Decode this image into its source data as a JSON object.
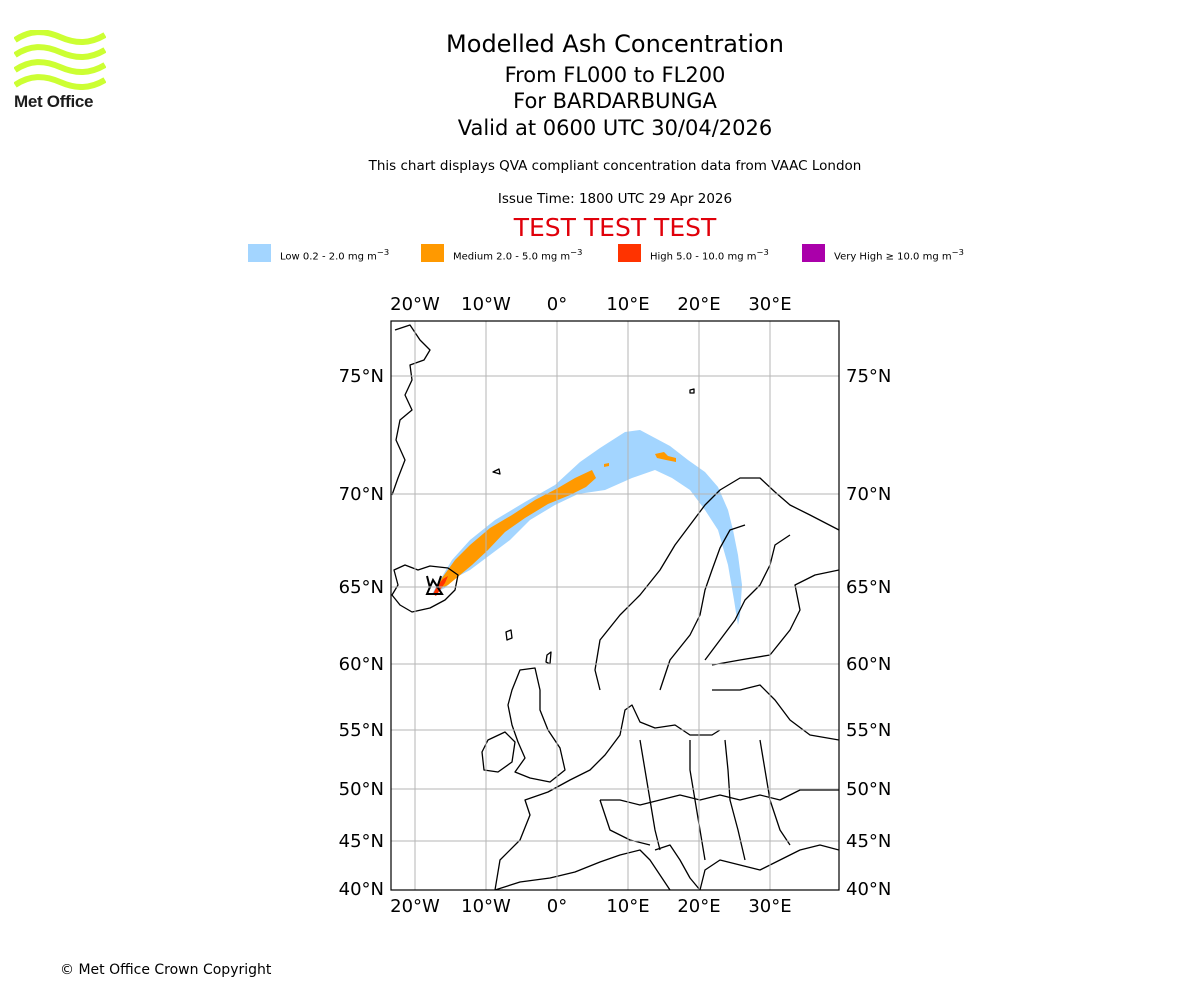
{
  "logo": {
    "text": "Met Office",
    "color": "#ccff33"
  },
  "titles": {
    "line1": "Modelled Ash Concentration",
    "line2": "From FL000 to FL200",
    "line3": "For BARDARBUNGA",
    "line4": "Valid at 0600 UTC 30/04/2026"
  },
  "subtitle": "This chart displays QVA compliant concentration data from VAAC London",
  "issue_time": "Issue Time: 1800 UTC 29 Apr 2026",
  "test_banner": "TEST TEST TEST",
  "legend": [
    {
      "label": "Low 0.2 - 2.0 mg m",
      "sup": "−3",
      "color": "#a3d5ff"
    },
    {
      "label": "Medium 2.0 - 5.0 mg m",
      "sup": "−3",
      "color": "#ff9900"
    },
    {
      "label": "High 5.0 - 10.0 mg m",
      "sup": "−3",
      "color": "#ff3300"
    },
    {
      "label": "Very High  ≥  10.0 mg m",
      "sup": "−3",
      "color": "#aa00aa"
    }
  ],
  "map": {
    "lon_labels": [
      "20°W",
      "10°W",
      "0°",
      "10°E",
      "20°E",
      "30°E"
    ],
    "lat_labels": [
      "75°N",
      "70°N",
      "65°N",
      "60°N",
      "55°N",
      "50°N",
      "45°N",
      "40°N"
    ]
  },
  "copyright": "© Met Office Crown Copyright"
}
